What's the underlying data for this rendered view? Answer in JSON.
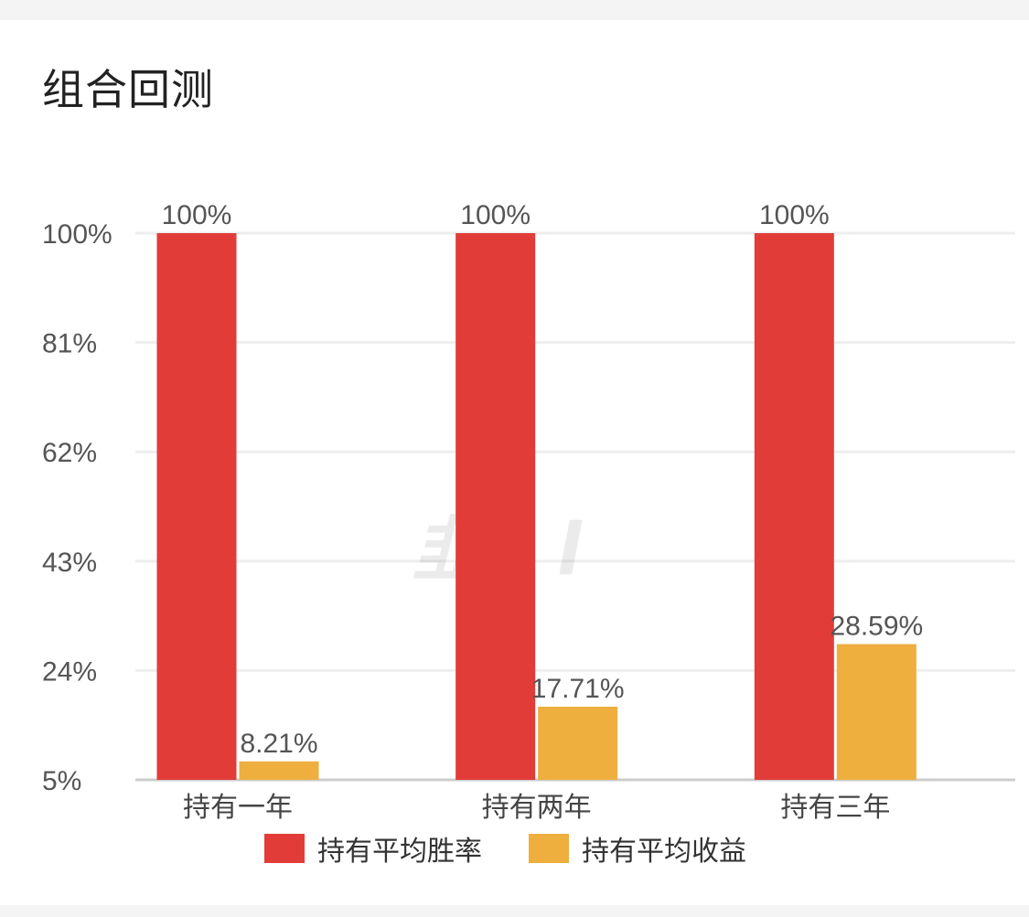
{
  "title": "组合回测",
  "colors": {
    "win_rate": "#e23c39",
    "avg_return": "#eeaf3f",
    "grid": "#eeeeee",
    "axis": "#cccccc"
  },
  "watermark_icon": "brand-logo-watermark",
  "chart_data": {
    "type": "bar",
    "categories": [
      "持有一年",
      "持有两年",
      "持有三年"
    ],
    "series": [
      {
        "name": "持有平均胜率",
        "values": [
          100,
          100,
          100
        ],
        "labels": [
          "100%",
          "100%",
          "100%"
        ]
      },
      {
        "name": "持有平均收益",
        "values": [
          8.21,
          17.71,
          28.59
        ],
        "labels": [
          "8.21%",
          "17.71%",
          "28.59%"
        ]
      }
    ],
    "yticks": [
      5,
      24,
      43,
      62,
      81,
      100
    ],
    "ytick_labels": [
      "5%",
      "24%",
      "43%",
      "62%",
      "81%",
      "100%"
    ],
    "ylim": [
      5,
      100
    ],
    "grid": true,
    "legend_position": "bottom"
  }
}
